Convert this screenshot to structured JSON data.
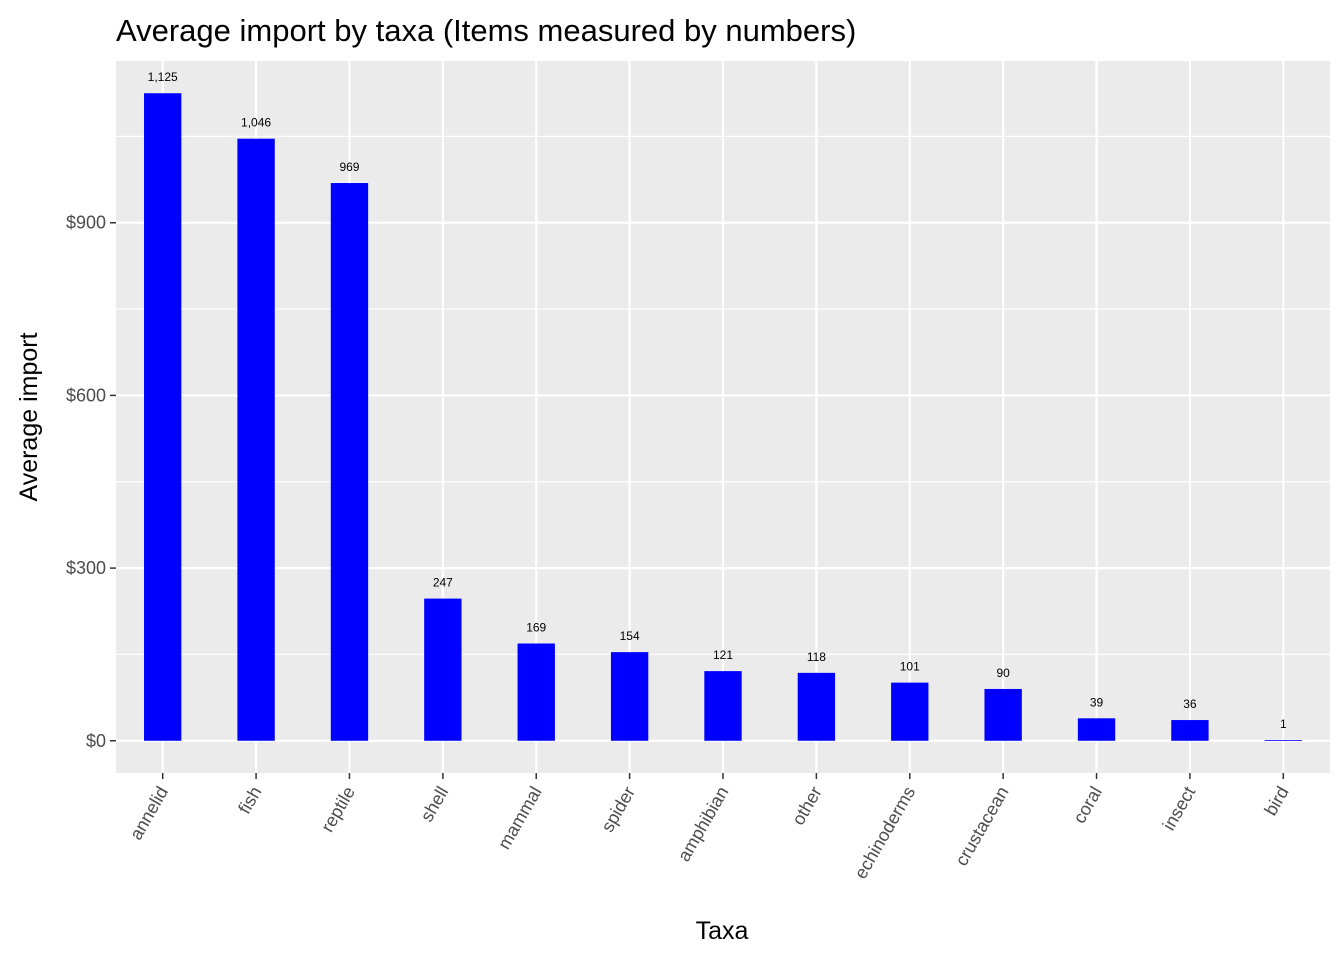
{
  "chart_data": {
    "type": "bar",
    "title": "Average import by taxa (Items measured by numbers)",
    "xlabel": "Taxa",
    "ylabel": "Average import",
    "categories": [
      "annelid",
      "fish",
      "reptile",
      "shell",
      "mammal",
      "spider",
      "amphibian",
      "other",
      "echinoderms",
      "crustacean",
      "coral",
      "insect",
      "bird"
    ],
    "values": [
      1125,
      1046,
      969,
      247,
      169,
      154,
      121,
      118,
      101,
      90,
      39,
      36,
      1
    ],
    "data_labels": [
      "1,125",
      "1,046",
      "969",
      "247",
      "169",
      "154",
      "121",
      "118",
      "101",
      "90",
      "39",
      "36",
      "1"
    ],
    "yticks": [
      0,
      300,
      600,
      900
    ],
    "ytick_labels": [
      "$0",
      "$300",
      "$600",
      "$900"
    ],
    "ylim": [
      -56,
      1181
    ],
    "grid": true,
    "legend": "none",
    "bar_color": "#0000ff",
    "panel_color": "#ebebeb",
    "grid_color": "#ffffff"
  }
}
